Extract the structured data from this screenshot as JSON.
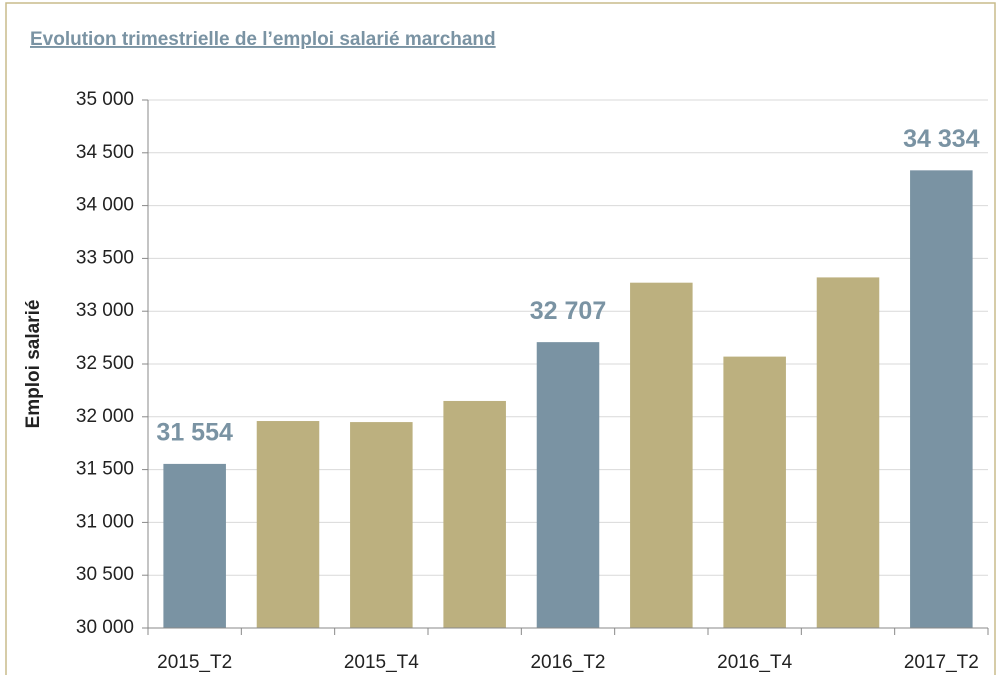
{
  "chart_data": {
    "type": "bar",
    "title": "Evolution trimestrielle de l’emploi salarié marchand",
    "y_label": "Emploi salarié",
    "categories": [
      "2015_T2",
      null,
      "2015_T4",
      null,
      "2016_T2",
      null,
      "2016_T4",
      null,
      "2017_T2"
    ],
    "values": [
      31554,
      31960,
      31950,
      32150,
      32707,
      33270,
      32570,
      33320,
      34334
    ],
    "value_labels": [
      "31 554",
      null,
      null,
      null,
      "32 707",
      null,
      null,
      null,
      "34 334"
    ],
    "colors": [
      "#7a93a3",
      "#bcb07f",
      "#bcb07f",
      "#bcb07f",
      "#7a93a3",
      "#bcb07f",
      "#bcb07f",
      "#bcb07f",
      "#7a93a3"
    ],
    "ylim": [
      30000,
      35000
    ],
    "yticks": [
      {
        "value": 30000,
        "label": "30 000"
      },
      {
        "value": 30500,
        "label": "30 500"
      },
      {
        "value": 31000,
        "label": "31 000"
      },
      {
        "value": 31500,
        "label": "31 500"
      },
      {
        "value": 32000,
        "label": "32 000"
      },
      {
        "value": 32500,
        "label": "32 500"
      },
      {
        "value": 33000,
        "label": "33 000"
      },
      {
        "value": 33500,
        "label": "33 500"
      },
      {
        "value": 34000,
        "label": "34 000"
      },
      {
        "value": 34500,
        "label": "34 500"
      },
      {
        "value": 35000,
        "label": "35 000"
      }
    ],
    "grid": true
  }
}
